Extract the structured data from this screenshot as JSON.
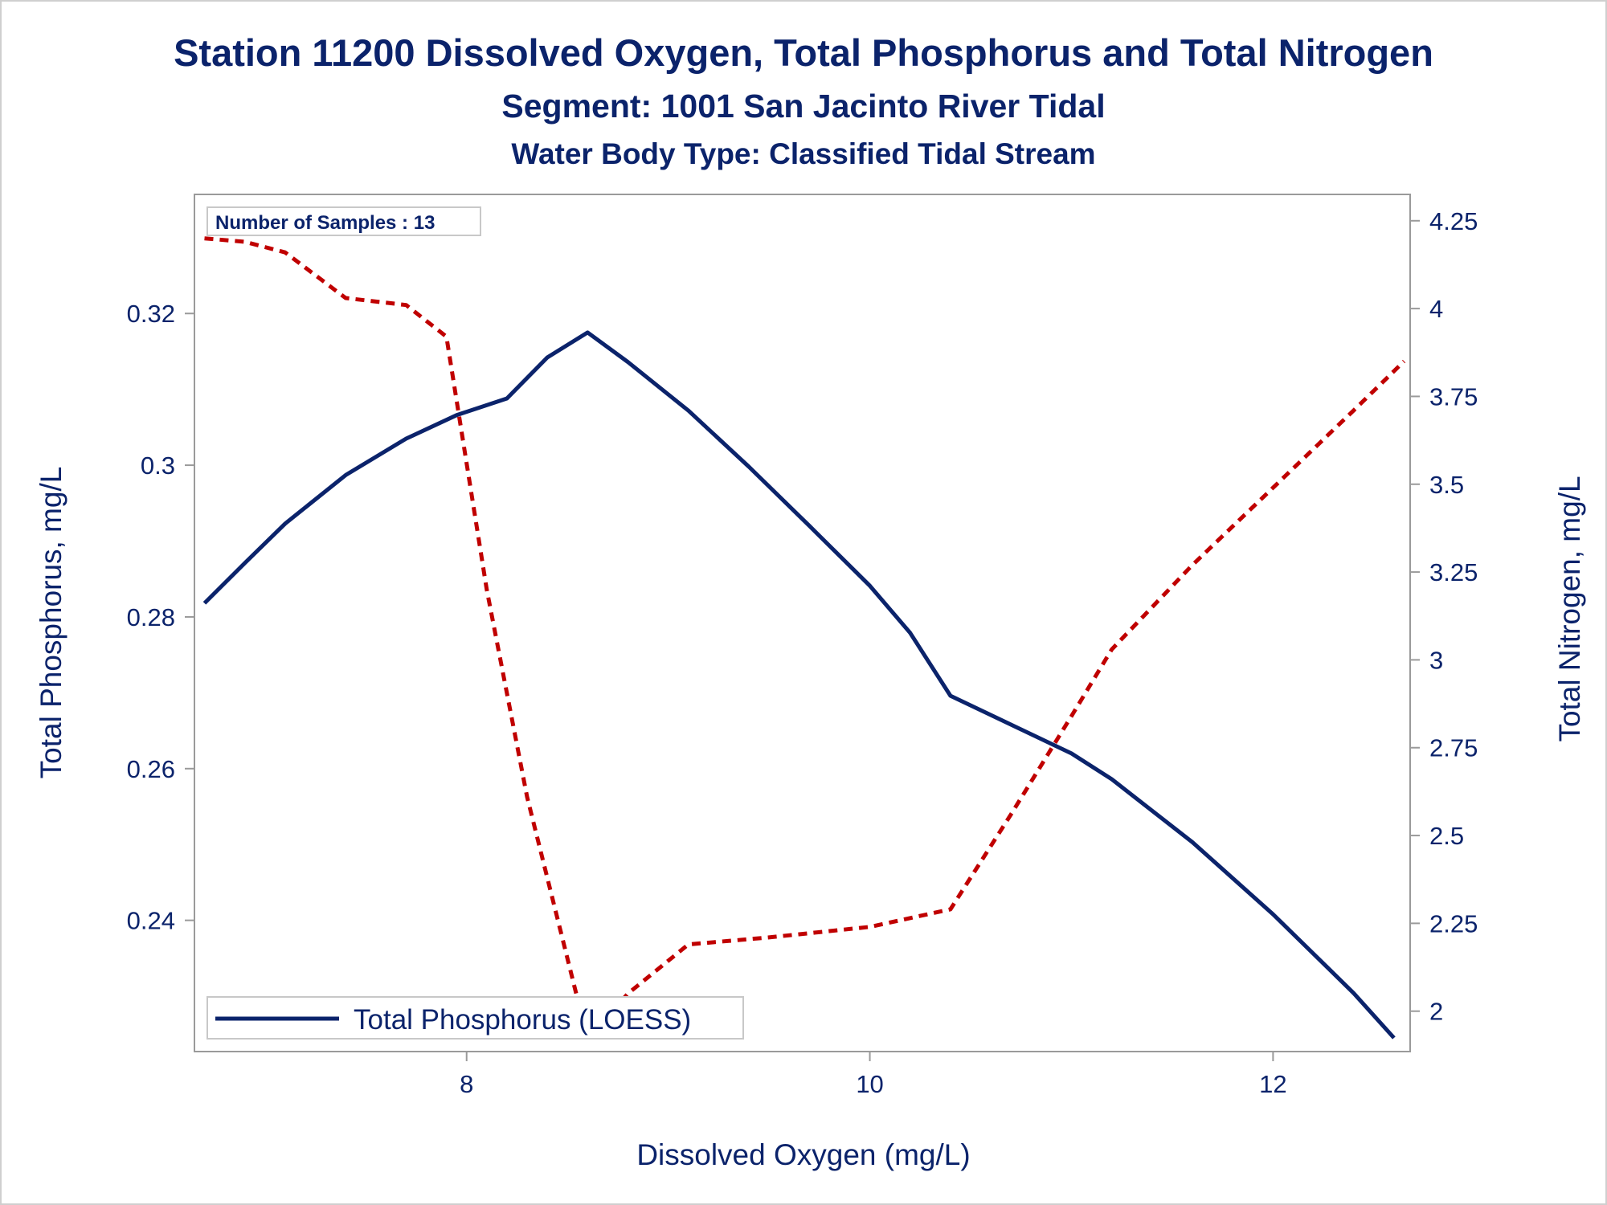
{
  "chart_data": {
    "type": "line",
    "title": "Station 11200  Dissolved Oxygen, Total Phosphorus and Total Nitrogen",
    "subtitle": "Segment: 1001  San Jacinto River Tidal",
    "subtitle2": "Water Body Type: Classified Tidal Stream",
    "xlabel": "Dissolved Oxygen (mg/L)",
    "ylabel": "Total Phosphorus, mg/L",
    "y2label": "Total Nitrogen, mg/L",
    "annotation": "Number of Samples : 13",
    "xlim": [
      6.65,
      12.68
    ],
    "ylim": [
      0.2227,
      0.3357
    ],
    "y2lim": [
      1.885,
      4.325
    ],
    "xticks": [
      "8",
      "10",
      "12"
    ],
    "xtick_values": [
      8,
      10,
      12
    ],
    "yticks": [
      "0.24",
      "0.26",
      "0.28",
      "0.3",
      "0.32"
    ],
    "ytick_values": [
      0.24,
      0.26,
      0.28,
      0.3,
      0.32
    ],
    "y2ticks": [
      "2",
      "2.25",
      "2.5",
      "2.75",
      "3",
      "3.25",
      "3.5",
      "3.75",
      "4",
      "4.25"
    ],
    "y2tick_values": [
      2.0,
      2.25,
      2.5,
      2.75,
      3.0,
      3.25,
      3.5,
      3.75,
      4.0,
      4.25
    ],
    "legend_position": "bottom-left",
    "grid": false,
    "series": [
      {
        "name": "Total Phosphorus (LOESS)",
        "axis": "left",
        "color": "#0b236b",
        "style": "solid",
        "x": [
          6.7,
          6.9,
          7.1,
          7.4,
          7.7,
          7.95,
          8.2,
          8.4,
          8.6,
          8.8,
          9.1,
          9.4,
          9.7,
          10.0,
          10.2,
          10.4,
          10.7,
          11.0,
          11.2,
          11.6,
          12.0,
          12.4,
          12.6
        ],
        "values": [
          0.2818,
          0.2871,
          0.2923,
          0.2987,
          0.3035,
          0.3066,
          0.3088,
          0.3142,
          0.3175,
          0.3136,
          0.3072,
          0.2998,
          0.292,
          0.2841,
          0.2779,
          0.2696,
          0.2658,
          0.262,
          0.2586,
          0.2503,
          0.2408,
          0.2304,
          0.2245
        ]
      },
      {
        "name": "Total Nitrogen",
        "axis": "right",
        "color": "#c00000",
        "style": "dashed",
        "x": [
          6.7,
          6.9,
          7.1,
          7.4,
          7.7,
          7.9,
          8.1,
          8.3,
          8.6,
          8.8,
          9.1,
          9.5,
          10.0,
          10.4,
          10.7,
          11.0,
          11.2,
          11.6,
          12.0,
          12.4,
          12.65
        ],
        "values": [
          4.2,
          4.19,
          4.16,
          4.03,
          4.01,
          3.92,
          3.2,
          2.61,
          1.92,
          2.05,
          2.19,
          2.21,
          2.24,
          2.29,
          2.56,
          2.84,
          3.03,
          3.27,
          3.49,
          3.71,
          3.85
        ]
      }
    ]
  }
}
